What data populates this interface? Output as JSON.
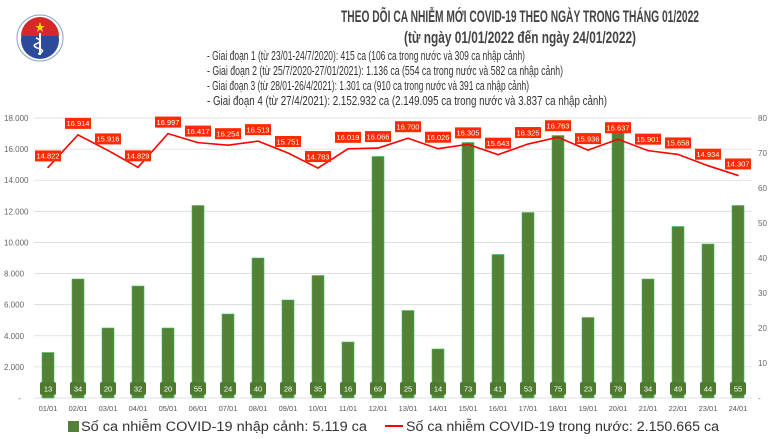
{
  "header": {
    "logo_text": "BỘ Y TẾ",
    "logo_subtext": "MINISTRY OF HEALTH",
    "title": "THEO DÕI CA NHIỄM MỚI COVID-19 THEO NGÀY TRONG THÁNG 01/2022",
    "subtitle": "(từ ngày 01/01/2022 đến ngày 24/01/2022)",
    "notes": [
      "- Giai đoạn 1 (từ 23/01-24/7/2020): 415 ca (106 ca trong nước và 309 ca nhập cảnh)",
      "- Giai đoạn 2 (từ 25/7/2020-27/01/2021): 1.136 ca (554 ca trong nước và 582 ca nhập cảnh)",
      "- Giai đoạn 3 (từ 28/01-26/4/2021): 1.301 ca (910 ca trong nước và 391 ca nhập cảnh)",
      "- Giai đoạn 4 (từ 27/4/2021): 2.152.932 ca (2.149.095 ca trong nước và 3.837 ca nhập cảnh)"
    ]
  },
  "chart_data": {
    "type": "bar+line",
    "title": "THEO DÕI CA NHIỄM MỚI COVID-19 THEO NGÀY TRONG THÁNG 01/2022",
    "categories": [
      "01/01",
      "02/01",
      "03/01",
      "04/01",
      "05/01",
      "06/01",
      "07/01",
      "08/01",
      "09/01",
      "10/01",
      "11/01",
      "12/01",
      "13/01",
      "14/01",
      "15/01",
      "16/01",
      "17/01",
      "18/01",
      "19/01",
      "20/01",
      "21/01",
      "22/01",
      "23/01",
      "24/01"
    ],
    "series": [
      {
        "name": "Số ca nhiễm COVID-19 nhập cảnh: 5.119 ca",
        "type": "bar",
        "axis": "right",
        "color": "#538135",
        "values": [
          13,
          34,
          20,
          32,
          20,
          55,
          24,
          40,
          28,
          35,
          16,
          69,
          25,
          14,
          73,
          41,
          53,
          75,
          23,
          78,
          34,
          49,
          44,
          55
        ],
        "labels": [
          "13",
          "34",
          "20",
          "32",
          "20",
          "55",
          "24",
          "40",
          "28",
          "35",
          "16",
          "69",
          "25",
          "14",
          "73",
          "41",
          "53",
          "75",
          "23",
          "78",
          "34",
          "49",
          "44",
          "55"
        ]
      },
      {
        "name": "Số ca nhiễm COVID-19 trong nước: 2.150.665 ca",
        "type": "line",
        "axis": "left",
        "color": "#ff0000",
        "values": [
          14822,
          16914,
          15916,
          14829,
          16997,
          16417,
          16254,
          16513,
          15751,
          14783,
          16019,
          16066,
          16700,
          16026,
          16305,
          15643,
          16325,
          16763,
          15936,
          16637,
          15901,
          15658,
          14934,
          14307
        ],
        "labels": [
          "14.822",
          "16.914",
          "15.916",
          "14.829",
          "16.997",
          "16.417",
          "16.254",
          "16.513",
          "15.751",
          "14.783",
          "16.019",
          "16.066",
          "16.700",
          "16.026",
          "16.305",
          "15.643",
          "16.325",
          "16.763",
          "15.936",
          "16.637",
          "15.901",
          "15.658",
          "14.934",
          "14.307"
        ]
      }
    ],
    "left_axis": {
      "range": [
        0,
        18000
      ],
      "ticks": [
        "-",
        "2.000",
        "4.000",
        "6.000",
        "8.000",
        "10.000",
        "12.000",
        "14.000",
        "16.000",
        "18.000"
      ]
    },
    "right_axis": {
      "range": [
        0,
        80
      ],
      "ticks": [
        "-",
        "10",
        "20",
        "30",
        "40",
        "50",
        "60",
        "70",
        "80"
      ]
    },
    "grid": true,
    "legend_position": "bottom"
  }
}
